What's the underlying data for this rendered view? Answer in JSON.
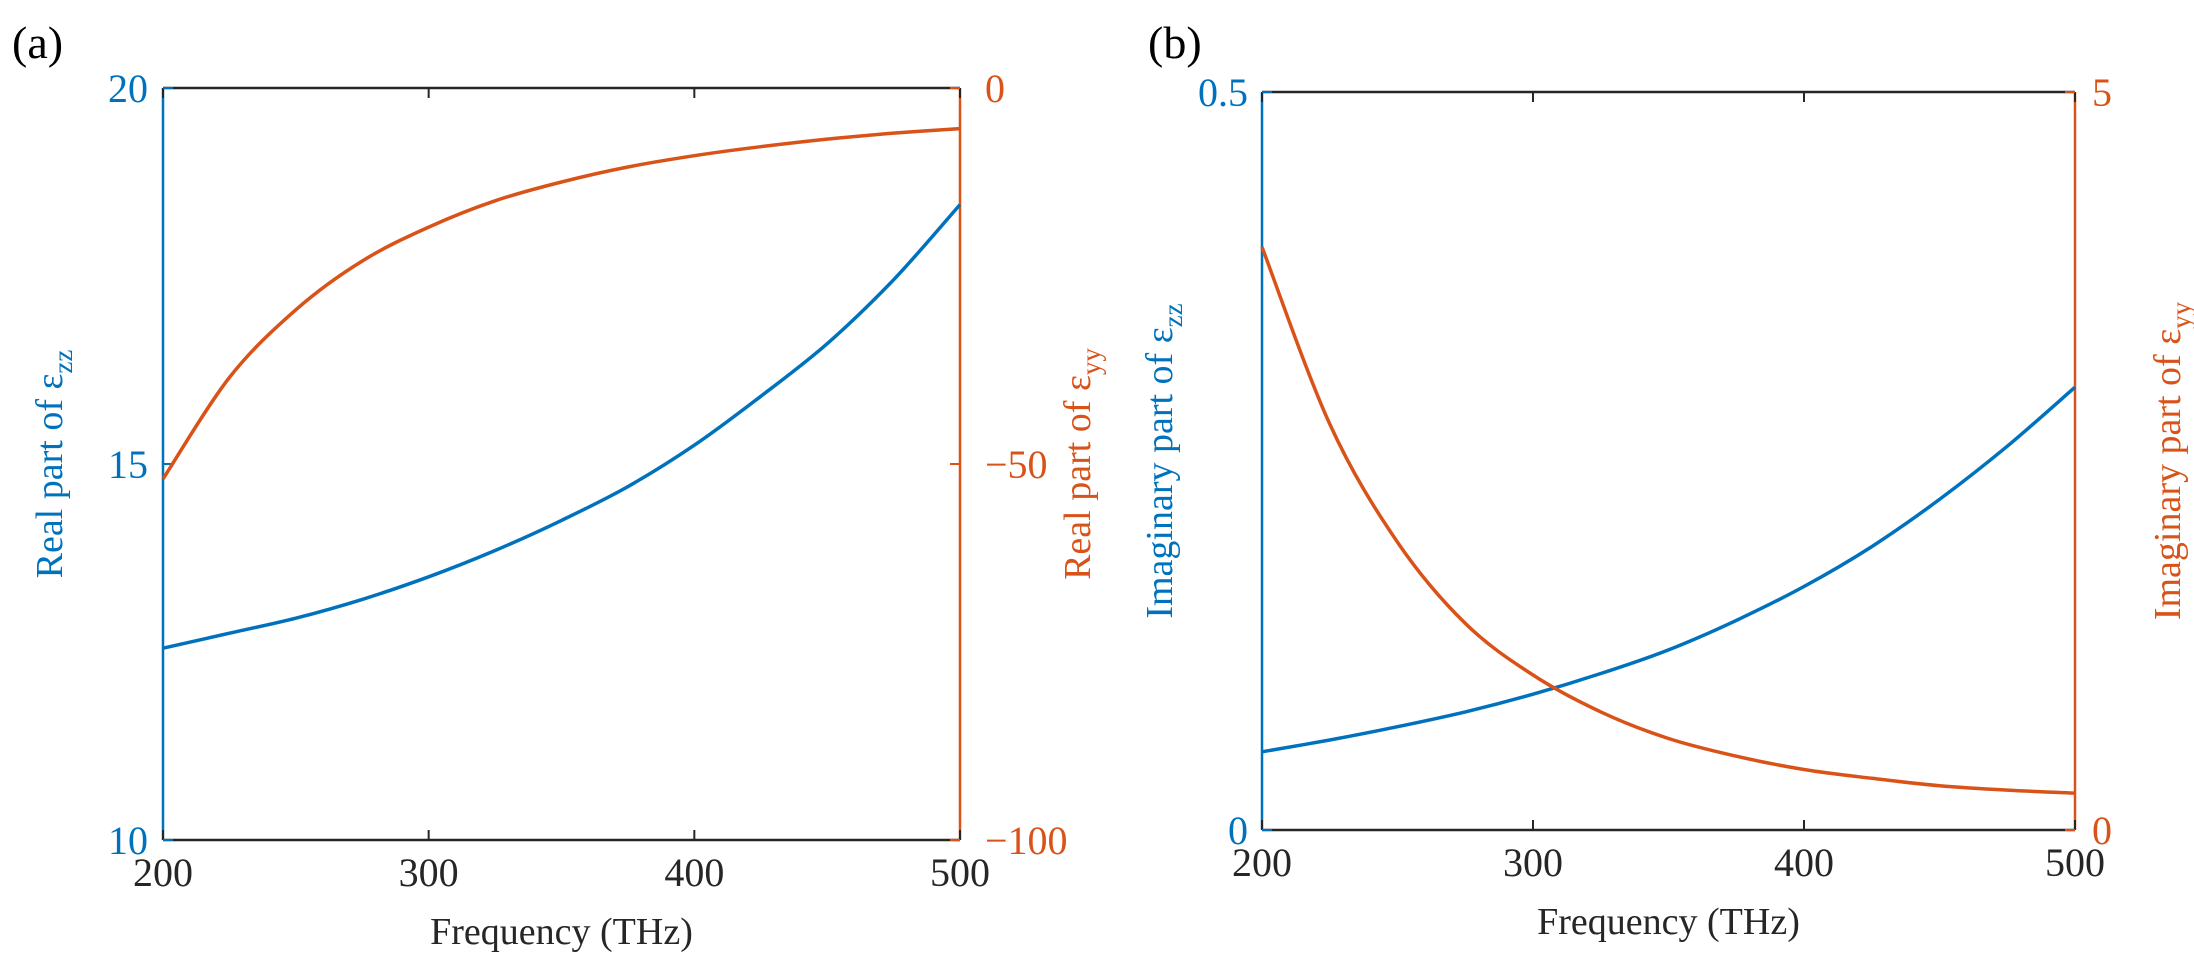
{
  "chart_data": [
    {
      "panel_label": "(a)",
      "type": "line",
      "xlabel": "Frequency (THz)",
      "xlim": [
        200,
        500
      ],
      "xticks": [
        "200",
        "300",
        "400",
        "500"
      ],
      "left_axis": {
        "label_main": "Real part of ε",
        "label_sub": "zz",
        "lim": [
          10,
          20
        ],
        "ticks": [
          "10",
          "15",
          "20"
        ],
        "color": "#0072BD"
      },
      "right_axis": {
        "label_main": "Real part of ε",
        "label_sub": "yy",
        "lim": [
          -100,
          0
        ],
        "ticks": [
          "−100",
          "−50",
          "0"
        ],
        "color": "#D95319"
      },
      "series": [
        {
          "name": "Real part of ε_zz",
          "axis": "left",
          "color": "#0072BD",
          "x": [
            200,
            225,
            250,
            275,
            300,
            325,
            350,
            375,
            400,
            425,
            450,
            475,
            500
          ],
          "y": [
            12.55,
            12.75,
            12.95,
            13.2,
            13.5,
            13.85,
            14.25,
            14.7,
            15.25,
            15.9,
            16.6,
            17.45,
            18.45
          ]
        },
        {
          "name": "Real part of ε_yy",
          "axis": "right",
          "color": "#D95319",
          "x": [
            200,
            225,
            250,
            275,
            300,
            325,
            350,
            375,
            400,
            425,
            450,
            475,
            500
          ],
          "y": [
            -52,
            -38.5,
            -29.5,
            -23,
            -18.5,
            -15,
            -12.5,
            -10.5,
            -9.0,
            -7.8,
            -6.8,
            -6.0,
            -5.4
          ]
        }
      ]
    },
    {
      "panel_label": "(b)",
      "type": "line",
      "xlabel": "Frequency (THz)",
      "xlim": [
        200,
        500
      ],
      "xticks": [
        "200",
        "300",
        "400",
        "500"
      ],
      "left_axis": {
        "label_main": "Imaginary part of ε",
        "label_sub": "zz",
        "lim": [
          0,
          0.5
        ],
        "ticks": [
          "0",
          "0.5"
        ],
        "color": "#0072BD"
      },
      "right_axis": {
        "label_main": "Imaginary part of ε",
        "label_sub": "yy",
        "lim": [
          0,
          5
        ],
        "ticks": [
          "0",
          "5"
        ],
        "color": "#D95319"
      },
      "series": [
        {
          "name": "Imaginary part of ε_zz",
          "axis": "left",
          "color": "#0072BD",
          "x": [
            200,
            225,
            250,
            275,
            300,
            325,
            350,
            375,
            400,
            425,
            450,
            475,
            500
          ],
          "y": [
            0.053,
            0.061,
            0.07,
            0.08,
            0.092,
            0.106,
            0.122,
            0.142,
            0.165,
            0.192,
            0.224,
            0.26,
            0.3
          ]
        },
        {
          "name": "Imaginary part of ε_yy",
          "axis": "right",
          "color": "#D95319",
          "x": [
            200,
            225,
            250,
            275,
            300,
            325,
            350,
            375,
            400,
            425,
            450,
            475,
            500
          ],
          "y": [
            3.95,
            2.75,
            1.95,
            1.4,
            1.05,
            0.8,
            0.62,
            0.5,
            0.41,
            0.35,
            0.3,
            0.27,
            0.25
          ]
        }
      ]
    }
  ]
}
